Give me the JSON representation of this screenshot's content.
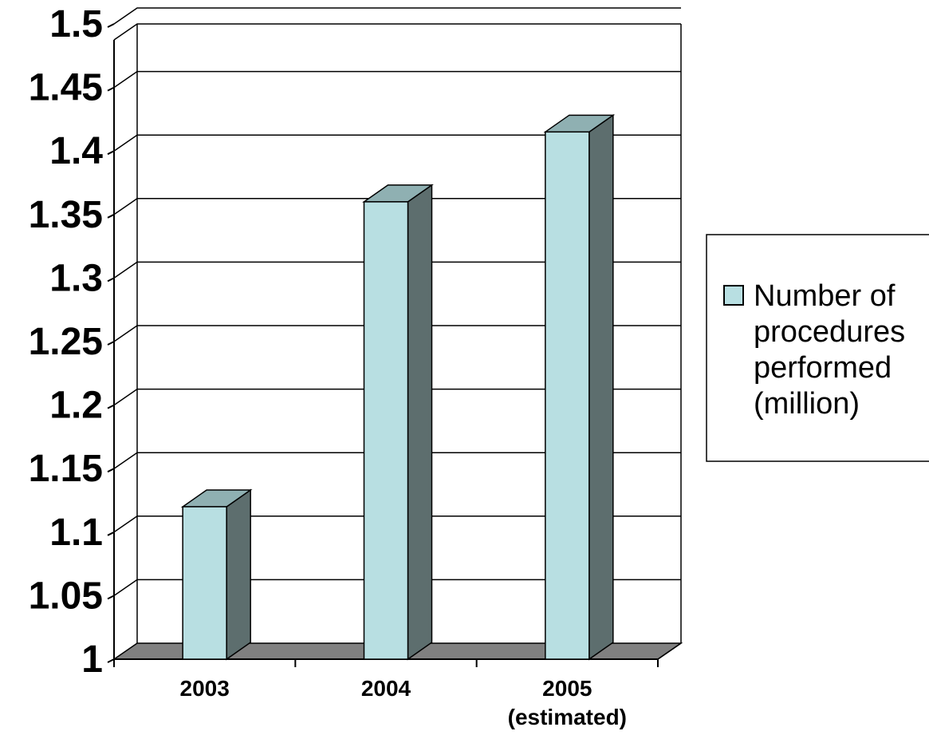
{
  "chart_data": {
    "type": "bar",
    "style": "3d-column",
    "categories": [
      [
        "2003"
      ],
      [
        "2004"
      ],
      [
        "2005",
        "(estimated)"
      ]
    ],
    "series": [
      {
        "name": "Number of procedures performed (million)",
        "legend_lines": [
          "Number of",
          "procedures",
          "performed",
          "(million)"
        ],
        "values": [
          1.12,
          1.36,
          1.415
        ]
      }
    ],
    "ylim": [
      1,
      1.5
    ],
    "yticks": [
      "1",
      "1.05",
      "1.1",
      "1.15",
      "1.2",
      "1.25",
      "1.3",
      "1.35",
      "1.4",
      "1.45",
      "1.5"
    ],
    "grid": true,
    "legend_position": "right",
    "colors": {
      "bar_front": "#b8dfe2",
      "bar_top": "#8fb0b2",
      "bar_side": "#5d6e6e",
      "floor": "#808080",
      "grid": "#000000"
    }
  }
}
